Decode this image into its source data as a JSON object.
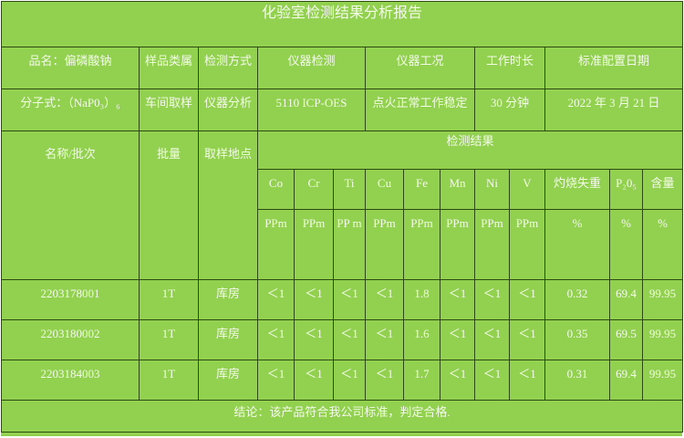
{
  "title": "化验室检测结果分析报告",
  "info_headers": [
    "品名：偏磷酸钠",
    "样品类属",
    "检测方式",
    "仪器检测",
    "仪器工况",
    "工作时长",
    "标准配置日期"
  ],
  "info_values": [
    "分子式：（NaP0₃）₆",
    "车间取样",
    "仪器分析",
    "5110 ICP-OES",
    "点火正常工作稳定",
    "30 分钟",
    "2022 年 3 月 21 日"
  ],
  "result_headers": {
    "name_batch": "名称/批次",
    "quantity": "批量",
    "location": "取样地点",
    "group": "检测结果"
  },
  "items": [
    "Co",
    "Cr",
    "Ti",
    "Cu",
    "Fe",
    "Mn",
    "Ni",
    "V",
    "灼烧失重",
    "P₂0₅",
    "含量"
  ],
  "units": [
    "PPm",
    "PPm",
    "PP m",
    "PPm",
    "PPm",
    "PPm",
    "PPm",
    "PPm",
    "%",
    "%",
    "%"
  ],
  "rows": [
    {
      "batch": "2203178001",
      "qty": "1T",
      "loc": "库房",
      "vals": [
        "＜1",
        "＜1",
        "＜1",
        "＜1",
        "1.8",
        "＜1",
        "＜1",
        "＜1",
        "0.32",
        "69.4",
        "99.95"
      ]
    },
    {
      "batch": "2203180002",
      "qty": "1T",
      "loc": "库房",
      "vals": [
        "＜1",
        "＜1",
        "＜1",
        "＜1",
        "1.6",
        "＜1",
        "＜1",
        "＜1",
        "0.35",
        "69.5",
        "99.95"
      ]
    },
    {
      "batch": "2203184003",
      "qty": "1T",
      "loc": "库房",
      "vals": [
        "＜1",
        "＜1",
        "＜1",
        "＜1",
        "1.7",
        "＜1",
        "＜1",
        "＜1",
        "0.31",
        "69.4",
        "99.95"
      ]
    }
  ],
  "conclusion": "结论：该产品符合我公司标准，判定合格.",
  "colors": {
    "background": "#92d050",
    "text": "#f4fbe9",
    "border": "#2d4a12"
  }
}
